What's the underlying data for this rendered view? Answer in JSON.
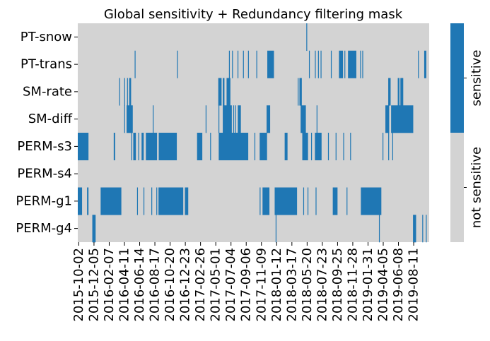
{
  "chart_data": {
    "type": "heatmap",
    "title": "Global sensitivity + Redundancy filtering mask",
    "rows": [
      "PT-snow",
      "PT-trans",
      "SM-rate",
      "SM-diff",
      "PERM-s3",
      "PERM-s4",
      "PERM-g1",
      "PERM-g4"
    ],
    "x_tick_labels": [
      "2015-10-02",
      "2015-12-05",
      "2016-02-07",
      "2016-04-11",
      "2016-06-14",
      "2016-08-17",
      "2016-10-20",
      "2016-12-23",
      "2017-02-26",
      "2017-05-01",
      "2017-07-04",
      "2017-09-06",
      "2017-11-09",
      "2018-01-12",
      "2018-03-17",
      "2018-05-20",
      "2018-07-23",
      "2018-09-25",
      "2018-11-28",
      "2019-01-31",
      "2019-04-05",
      "2019-06-08",
      "2019-08-11"
    ],
    "x_start": "2015-10-02",
    "x_end": "2019-10-17",
    "values": [
      0,
      1
    ],
    "colorbar_labels": [
      "not sensitive",
      "sensitive"
    ],
    "colors": {
      "not_sensitive": "#d3d3d3",
      "sensitive": "#1f77b4"
    },
    "sensitive_periods": {
      "PT-snow": [
        [
          "2018-05-19",
          "2018-05-20"
        ]
      ],
      "PT-trans": [
        [
          "2016-05-28",
          "2016-05-29"
        ],
        [
          "2016-11-22",
          "2016-11-23"
        ],
        [
          "2017-06-28",
          "2017-06-29"
        ],
        [
          "2017-07-11",
          "2017-07-12"
        ],
        [
          "2017-08-03",
          "2017-08-04"
        ],
        [
          "2017-08-26",
          "2017-08-27"
        ],
        [
          "2017-09-16",
          "2017-09-17"
        ],
        [
          "2017-10-21",
          "2017-10-22"
        ],
        [
          "2017-12-06",
          "2018-01-03"
        ],
        [
          "2018-05-30",
          "2018-05-31"
        ],
        [
          "2018-06-24",
          "2018-06-25"
        ],
        [
          "2018-07-07",
          "2018-07-08"
        ],
        [
          "2018-07-18",
          "2018-07-19"
        ],
        [
          "2018-08-30",
          "2018-08-31"
        ],
        [
          "2018-10-03",
          "2018-10-20"
        ],
        [
          "2018-10-26",
          "2018-10-27"
        ],
        [
          "2018-11-10",
          "2018-12-15"
        ],
        [
          "2018-12-31",
          "2019-01-01"
        ],
        [
          "2019-01-09",
          "2019-01-10"
        ],
        [
          "2019-08-31",
          "2019-09-03"
        ],
        [
          "2019-09-26",
          "2019-10-05"
        ]
      ],
      "SM-rate": [
        [
          "2016-03-24",
          "2016-03-25"
        ],
        [
          "2016-04-14",
          "2016-04-15"
        ],
        [
          "2016-04-26",
          "2016-04-27"
        ],
        [
          "2016-05-05",
          "2016-05-13"
        ],
        [
          "2017-05-14",
          "2017-05-28"
        ],
        [
          "2017-06-02",
          "2017-06-09"
        ],
        [
          "2017-06-18",
          "2017-07-04"
        ],
        [
          "2018-04-13",
          "2018-04-14"
        ],
        [
          "2018-04-20",
          "2018-04-30"
        ],
        [
          "2019-04-28",
          "2019-05-08"
        ],
        [
          "2019-06-07",
          "2019-06-14"
        ],
        [
          "2019-06-18",
          "2019-06-30"
        ]
      ],
      "SM-diff": [
        [
          "2016-04-14",
          "2016-04-15"
        ],
        [
          "2016-04-24",
          "2016-05-20"
        ],
        [
          "2016-08-12",
          "2016-08-13"
        ],
        [
          "2017-03-22",
          "2017-03-23"
        ],
        [
          "2017-05-15",
          "2017-05-16"
        ],
        [
          "2017-06-02",
          "2017-07-10"
        ],
        [
          "2017-07-16",
          "2017-07-17"
        ],
        [
          "2017-07-24",
          "2017-07-25"
        ],
        [
          "2017-08-04",
          "2017-08-17"
        ],
        [
          "2017-12-03",
          "2017-12-18"
        ],
        [
          "2018-04-25",
          "2018-05-17"
        ],
        [
          "2018-07-01",
          "2018-07-02"
        ],
        [
          "2019-04-16",
          "2019-05-02"
        ],
        [
          "2019-05-10",
          "2019-08-11"
        ]
      ],
      "PERM-s3": [
        [
          "2015-10-02",
          "2015-11-16"
        ],
        [
          "2016-03-01",
          "2016-03-07"
        ],
        [
          "2016-05-14",
          "2016-05-15"
        ],
        [
          "2016-05-22",
          "2016-06-02"
        ],
        [
          "2016-06-12",
          "2016-06-13"
        ],
        [
          "2016-06-26",
          "2016-07-05"
        ],
        [
          "2016-07-14",
          "2016-08-30"
        ],
        [
          "2016-09-06",
          "2016-11-21"
        ],
        [
          "2017-02-14",
          "2017-03-08"
        ],
        [
          "2017-04-10",
          "2017-04-11"
        ],
        [
          "2017-05-16",
          "2017-09-17"
        ],
        [
          "2017-10-13",
          "2017-10-14"
        ],
        [
          "2017-11-04",
          "2017-12-05"
        ],
        [
          "2018-02-17",
          "2018-03-01"
        ],
        [
          "2018-05-02",
          "2018-05-26"
        ],
        [
          "2018-06-08",
          "2018-06-10"
        ],
        [
          "2018-06-24",
          "2018-07-22"
        ],
        [
          "2018-08-18",
          "2018-08-19"
        ],
        [
          "2018-09-19",
          "2018-09-20"
        ],
        [
          "2018-10-21",
          "2018-10-22"
        ],
        [
          "2018-11-19",
          "2018-11-20"
        ],
        [
          "2019-04-04",
          "2019-04-05"
        ],
        [
          "2019-04-28",
          "2019-04-30"
        ],
        [
          "2019-05-15",
          "2019-05-16"
        ]
      ],
      "PERM-s4": [],
      "PERM-g1": [
        [
          "2015-10-02",
          "2015-10-20"
        ],
        [
          "2015-11-10",
          "2015-11-16"
        ],
        [
          "2016-01-06",
          "2016-04-02"
        ],
        [
          "2016-06-07",
          "2016-06-08"
        ],
        [
          "2016-07-04",
          "2016-07-05"
        ],
        [
          "2016-08-06",
          "2016-08-07"
        ],
        [
          "2016-08-27",
          "2016-08-28"
        ],
        [
          "2016-09-05",
          "2016-12-18"
        ],
        [
          "2016-12-25",
          "2017-01-08"
        ],
        [
          "2017-11-04",
          "2017-11-05"
        ],
        [
          "2017-11-16",
          "2017-12-15"
        ],
        [
          "2018-01-06",
          "2018-04-10"
        ],
        [
          "2018-05-06",
          "2018-05-07"
        ],
        [
          "2018-05-24",
          "2018-05-25"
        ],
        [
          "2018-06-27",
          "2018-06-28"
        ],
        [
          "2018-09-07",
          "2018-09-27"
        ],
        [
          "2018-11-04",
          "2018-11-05"
        ],
        [
          "2019-01-03",
          "2019-03-30"
        ]
      ],
      "PERM-g4": [
        [
          "2015-12-02",
          "2015-12-16"
        ],
        [
          "2018-01-10",
          "2018-01-11"
        ],
        [
          "2019-03-20",
          "2019-03-21"
        ],
        [
          "2019-08-10",
          "2019-08-23"
        ],
        [
          "2019-09-18",
          "2019-09-19"
        ],
        [
          "2019-10-03",
          "2019-10-04"
        ]
      ]
    }
  }
}
